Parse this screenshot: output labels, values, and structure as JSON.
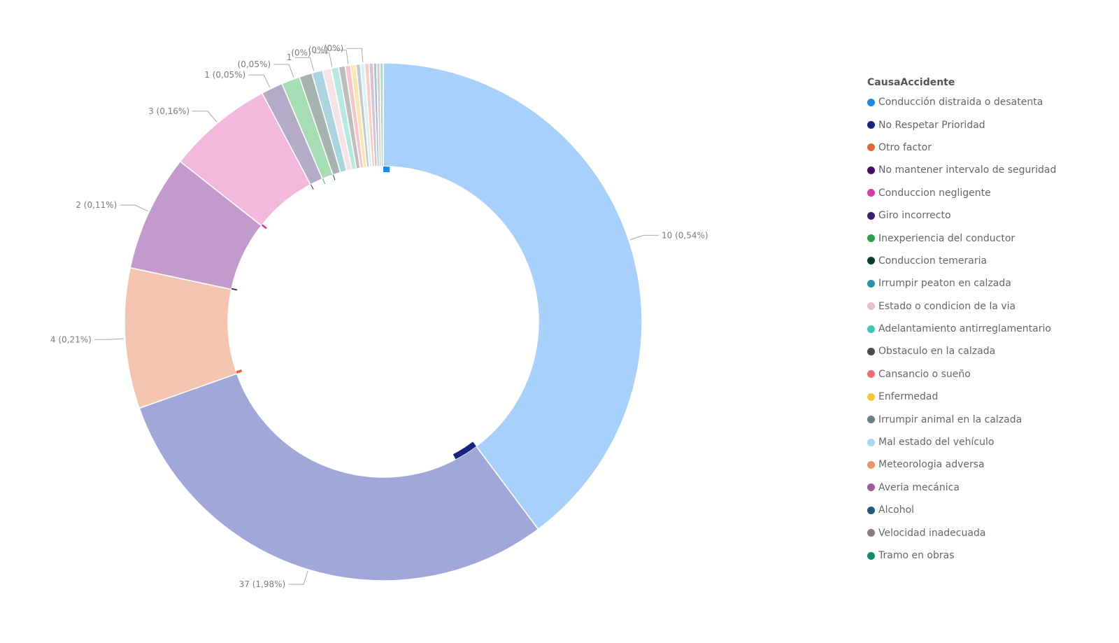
{
  "chart_data": {
    "type": "pie",
    "variant": "donut",
    "legend_title": "CausaAccidente",
    "legend_position": "right",
    "categories": [
      "Conducción distraida o desatenta",
      "No Respetar Prioridad",
      "Otro factor",
      "No mantener intervalo de seguridad",
      "Conduccion negligente",
      "Giro incorrecto",
      "Inexperiencia del conductor",
      "Conduccion temeraria",
      "Irrumpir peaton en calzada",
      "Estado o condicion de la via",
      "Adelantamiento antirreglamentario",
      "Obstaculo en la calzada",
      "Cansancio o sueño",
      "Enfermedad",
      "Irrumpir animal en la calzada",
      "Mal estado del vehículo",
      "Meteorologia adversa",
      "Averia mecánica",
      "Alcohol",
      "Velocidad inadecuada",
      "Tramo en obras"
    ],
    "colors": [
      "#1E88E5",
      "#1A237E",
      "#E0663A",
      "#4A0D67",
      "#D63AA8",
      "#3B1F6E",
      "#2E9E48",
      "#0B3D30",
      "#2E8FA8",
      "#E9C0C8",
      "#45C4B0",
      "#4B4B4B",
      "#EE6E73",
      "#F5C542",
      "#6B7F86",
      "#A9D8EA",
      "#E8936A",
      "#A05A9C",
      "#1F5C73",
      "#8A7884",
      "#128A6B"
    ],
    "outer_series": [
      {
        "name": "Conducción distraida o desatenta",
        "value": 590,
        "color": "#A7D0FA"
      },
      {
        "name": "No Respetar Prioridad",
        "value": 442,
        "color": "#A1A7D9"
      },
      {
        "name": "Otro factor",
        "value": 130,
        "color": "#F3C4B0"
      },
      {
        "name": "No mantener intervalo de seguridad",
        "value": 108,
        "color": "#C39ACC"
      },
      {
        "name": "Conduccion negligente",
        "value": 98,
        "color": "#F2B8DE"
      },
      {
        "name": "Giro incorrecto",
        "value": 20,
        "color": "#B4ABC8"
      },
      {
        "name": "Inexperiencia del conductor",
        "value": 17,
        "color": "#A6DDB4"
      },
      {
        "name": "Conduccion temeraria",
        "value": 12,
        "color": "#A6B3AE"
      },
      {
        "name": "Irrumpir peaton en calzada",
        "value": 10,
        "color": "#ABD4DF"
      },
      {
        "name": "Estado o condicion de la via",
        "value": 8,
        "color": "#F5E2E6"
      },
      {
        "name": "Adelantamiento antirreglamentario",
        "value": 7,
        "color": "#B8E8E0"
      },
      {
        "name": "Obstaculo en la calzada",
        "value": 6,
        "color": "#BDBDBD"
      },
      {
        "name": "Cansancio o sueño",
        "value": 5,
        "color": "#F8C6C8"
      },
      {
        "name": "Enfermedad",
        "value": 5,
        "color": "#FBE6B0"
      },
      {
        "name": "Irrumpir animal en la calzada",
        "value": 4,
        "color": "#C2CBCE"
      },
      {
        "name": "Mal estado del vehículo",
        "value": 4,
        "color": "#DDEFF7"
      },
      {
        "name": "Meteorologia adversa",
        "value": 4,
        "color": "#F4D0BE"
      },
      {
        "name": "Averia mecánica",
        "value": 4,
        "color": "#D9C0D7"
      },
      {
        "name": "Alcohol",
        "value": 3,
        "color": "#A9C3CD"
      },
      {
        "name": "Velocidad inadecuada",
        "value": 3,
        "color": "#D3CBD1"
      },
      {
        "name": "Tramo en obras",
        "value": 3,
        "color": "#A9D7C9"
      }
    ],
    "inner_series": [
      {
        "name": "Conducción distraida o desatenta",
        "value": 10
      },
      {
        "name": "No Respetar Prioridad",
        "value": 37
      },
      {
        "name": "Otro factor",
        "value": 4
      },
      {
        "name": "No mantener intervalo de seguridad",
        "value": 2
      },
      {
        "name": "Conduccion negligente",
        "value": 3
      },
      {
        "name": "Giro incorrecto",
        "value": 1
      },
      {
        "name": "Inexperiencia del conductor",
        "value": 1
      },
      {
        "name": "Conduccion temeraria",
        "value": 1
      }
    ],
    "data_labels": [
      {
        "text": "10 (0,54%)",
        "category": "Conducción distraida o desatenta"
      },
      {
        "text": "37 (1,98%)",
        "category": "No Respetar Prioridad"
      },
      {
        "text": "4 (0,21%)",
        "category": "Otro factor"
      },
      {
        "text": "2 (0,11%)",
        "category": "No mantener intervalo de seguridad"
      },
      {
        "text": "3 (0,16%)",
        "category": "Conduccion negligente"
      },
      {
        "text": "1 (0,05%)",
        "category": "Giro incorrecto"
      },
      {
        "text": "(0,05%)",
        "category": "Inexperiencia del conductor"
      },
      {
        "text": "1",
        "category": "Conduccion temeraria"
      },
      {
        "text": "(0%)",
        "category": "Irrumpir peaton en calzada"
      },
      {
        "text": "(0%)",
        "category": "Estado o condicion de la via"
      },
      {
        "text": "(0%)",
        "category": "Adelantamiento antirreglamentario"
      }
    ]
  }
}
